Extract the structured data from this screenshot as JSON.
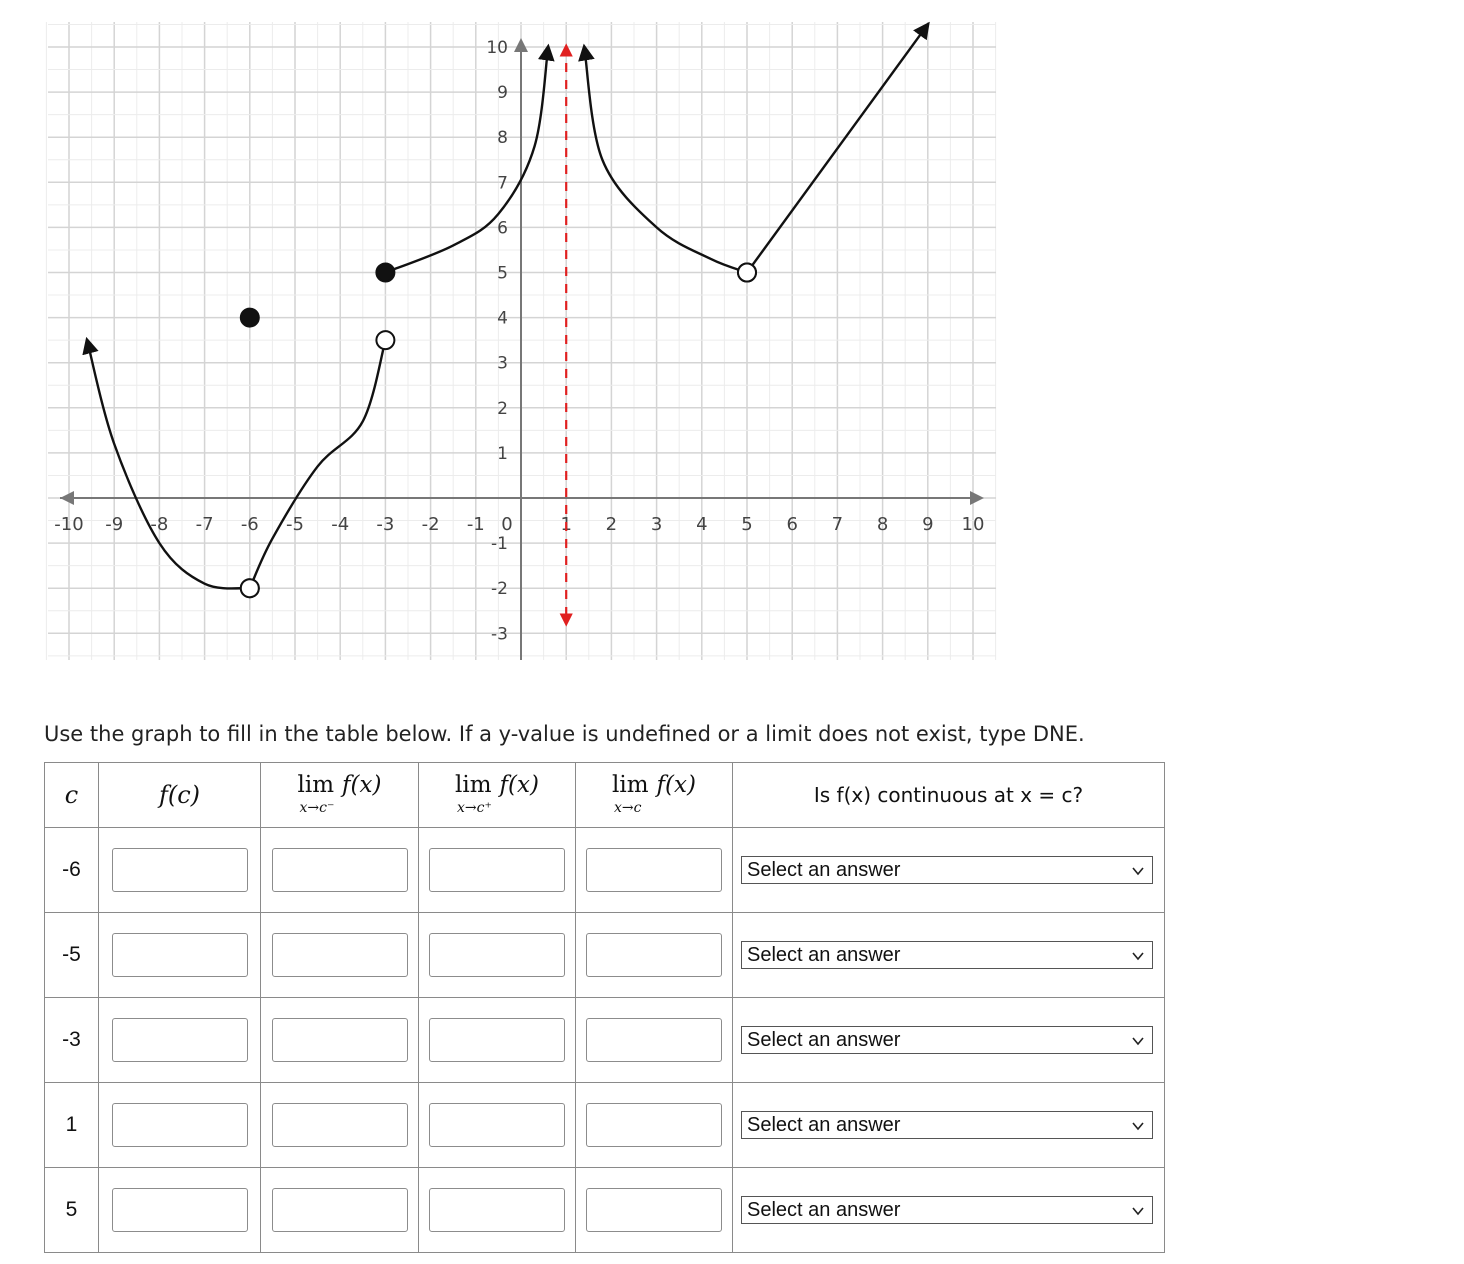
{
  "graph": {
    "x_ticks": [
      "-10",
      "-9",
      "-8",
      "-7",
      "-6",
      "-5",
      "-4",
      "-3",
      "-2",
      "-1",
      "0",
      "1",
      "2",
      "3",
      "4",
      "5",
      "6",
      "7",
      "8",
      "9",
      "10"
    ],
    "y_ticks": [
      "10",
      "9",
      "8",
      "7",
      "6",
      "5",
      "4",
      "3",
      "2",
      "1",
      "-1",
      "-2",
      "-3"
    ],
    "x_range": [
      -10,
      10
    ],
    "y_range": [
      -3,
      10
    ],
    "grid": true,
    "colors": {
      "curve": "#111111",
      "asymptote": "#e02020",
      "grid": "#d6d6d6",
      "axis": "#777777"
    },
    "pieces": [
      {
        "kind": "curve",
        "points": [
          [
            -9.6,
            3.5
          ],
          [
            -9.0,
            1.2
          ],
          [
            -8.0,
            -1.0
          ],
          [
            -7.0,
            -1.9
          ],
          [
            -6.0,
            -2.0
          ]
        ],
        "start": "arrow",
        "end": "open"
      },
      {
        "kind": "curve",
        "points": [
          [
            -6.0,
            -2.0
          ],
          [
            -5.5,
            -0.9
          ],
          [
            -4.5,
            0.7
          ],
          [
            -3.5,
            1.7
          ],
          [
            -3.0,
            3.5
          ]
        ],
        "start": "open",
        "end": "open"
      },
      {
        "kind": "curve",
        "points": [
          [
            -3.0,
            5.0
          ],
          [
            -1.5,
            5.6
          ],
          [
            -0.5,
            6.3
          ],
          [
            0.3,
            7.8
          ],
          [
            0.6,
            10.0
          ]
        ],
        "start": "closed",
        "end": "arrow"
      },
      {
        "kind": "curve",
        "points": [
          [
            1.4,
            10.0
          ],
          [
            1.8,
            7.5
          ],
          [
            3.0,
            6.0
          ],
          [
            4.2,
            5.3
          ],
          [
            5.0,
            5.0
          ]
        ],
        "start": "arrow",
        "end": "open"
      },
      {
        "kind": "curve",
        "points": [
          [
            5.0,
            5.0
          ],
          [
            9.0,
            10.5
          ]
        ],
        "start": "open",
        "end": "arrow"
      }
    ],
    "isolated_points": [
      {
        "x": -6,
        "y": 4,
        "style": "closed"
      }
    ],
    "asymptote_x": 1
  },
  "instructions": "Use the graph to fill in the table below. If a y-value is undefined or a limit does not exist, type DNE.",
  "table": {
    "headers": {
      "c": "c",
      "fc": "f(c)",
      "lim_left": {
        "lim": "lim",
        "f": "f(x)",
        "sub": "x→c⁻"
      },
      "lim_right": {
        "lim": "lim",
        "f": "f(x)",
        "sub": "x→c⁺"
      },
      "lim_both": {
        "lim": "lim",
        "f": "f(x)",
        "sub": "x→c"
      },
      "continuous": "Is f(x) continuous at x = c?"
    },
    "rows": [
      {
        "c": "-6",
        "fc": "",
        "lim_left": "",
        "lim_right": "",
        "lim": "",
        "continuous": "Select an answer"
      },
      {
        "c": "-5",
        "fc": "",
        "lim_left": "",
        "lim_right": "",
        "lim": "",
        "continuous": "Select an answer"
      },
      {
        "c": "-3",
        "fc": "",
        "lim_left": "",
        "lim_right": "",
        "lim": "",
        "continuous": "Select an answer"
      },
      {
        "c": "1",
        "fc": "",
        "lim_left": "",
        "lim_right": "",
        "lim": "",
        "continuous": "Select an answer"
      },
      {
        "c": "5",
        "fc": "",
        "lim_left": "",
        "lim_right": "",
        "lim": "",
        "continuous": "Select an answer"
      }
    ]
  }
}
